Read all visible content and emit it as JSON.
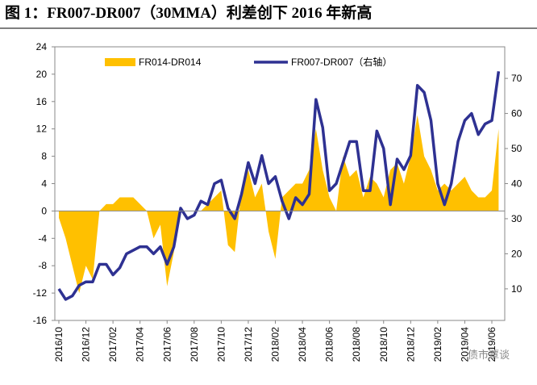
{
  "chart_data": {
    "type": "area-line",
    "title": "图 1：FR007-DR007（30MMA）利差创下 2016 年新高",
    "watermark": "债市覃谈",
    "categories": [
      "2016/10",
      null,
      null,
      null,
      "2016/12",
      null,
      null,
      null,
      "2017/02",
      null,
      null,
      null,
      "2017/04",
      null,
      null,
      null,
      "2017/06",
      null,
      null,
      null,
      "2017/08",
      null,
      null,
      null,
      "2017/10",
      null,
      null,
      null,
      "2017/12",
      null,
      null,
      null,
      "2018/02",
      null,
      null,
      null,
      "2018/04",
      null,
      null,
      null,
      "2018/06",
      null,
      null,
      null,
      "2018/08",
      null,
      null,
      null,
      "2018/10",
      null,
      null,
      null,
      "2018/12",
      null,
      null,
      null,
      "2019/02",
      null,
      null,
      null,
      "2019/04",
      null,
      null,
      null,
      "2019/06",
      null
    ],
    "series": [
      {
        "name": "FR014-DR014",
        "color": "#ffc000",
        "kind": "area",
        "values": [
          -1,
          -4,
          -8,
          -12,
          -8,
          -10,
          0,
          1,
          1,
          2,
          2,
          2,
          1,
          0,
          -4,
          -2,
          -11,
          -6,
          0,
          0,
          0,
          0,
          1,
          2,
          3,
          -5,
          -6,
          3,
          6,
          2,
          4,
          -3,
          -7,
          2,
          3,
          4,
          4,
          6,
          12,
          6,
          2,
          0,
          8,
          5,
          6,
          2,
          5,
          4,
          2,
          6,
          7,
          4,
          8,
          14,
          8,
          6,
          3,
          4,
          3,
          4,
          5,
          3,
          2,
          2,
          3,
          12
        ]
      },
      {
        "name": "FR007-DR007（右轴）",
        "color": "#2e3192",
        "kind": "line",
        "axis": "y2",
        "values": [
          10,
          7,
          8,
          11,
          12,
          12,
          17,
          17,
          14,
          16,
          20,
          21,
          22,
          22,
          20,
          22,
          17,
          22,
          33,
          30,
          31,
          35,
          34,
          40,
          41,
          33,
          30,
          37,
          46,
          40,
          48,
          40,
          42,
          35,
          30,
          36,
          34,
          37,
          64,
          56,
          38,
          40,
          46,
          52,
          52,
          38,
          38,
          55,
          50,
          34,
          47,
          44,
          48,
          68,
          66,
          58,
          40,
          34,
          40,
          52,
          58,
          60,
          54,
          57,
          58,
          72
        ]
      }
    ],
    "ylim": [
      -16,
      24
    ],
    "yticks": [
      -16,
      -12,
      -8,
      -4,
      0,
      4,
      8,
      12,
      16,
      20,
      24
    ],
    "y2lim": [
      1,
      79
    ],
    "y2ticks": [
      10,
      20,
      30,
      40,
      50,
      60,
      70
    ],
    "legend": "top"
  }
}
